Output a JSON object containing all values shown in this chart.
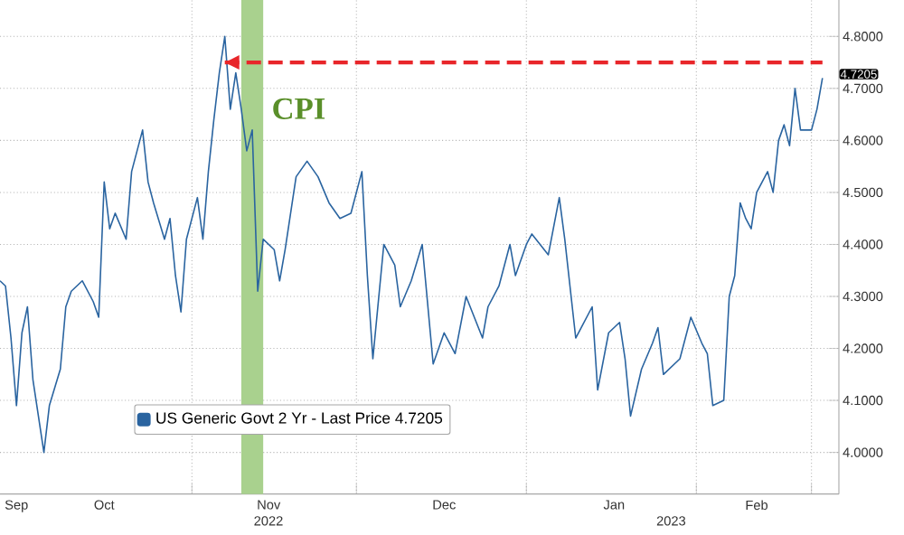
{
  "chart_data": {
    "type": "line",
    "x": [
      "2022-09-27",
      "2022-09-28",
      "2022-09-29",
      "2022-09-30",
      "2022-10-01",
      "2022-10-02",
      "2022-10-03",
      "2022-10-05",
      "2022-10-06",
      "2022-10-08",
      "2022-10-09",
      "2022-10-10",
      "2022-10-12",
      "2022-10-14",
      "2022-10-15",
      "2022-10-16",
      "2022-10-17",
      "2022-10-18",
      "2022-10-20",
      "2022-10-21",
      "2022-10-23",
      "2022-10-24",
      "2022-10-25",
      "2022-10-27",
      "2022-10-28",
      "2022-10-29",
      "2022-10-30",
      "2022-10-31",
      "2022-11-02",
      "2022-11-03",
      "2022-11-04",
      "2022-11-05",
      "2022-11-06",
      "2022-11-07",
      "2022-11-08",
      "2022-11-09",
      "2022-11-10",
      "2022-11-11",
      "2022-11-12",
      "2022-11-13",
      "2022-11-14",
      "2022-11-16",
      "2022-11-17",
      "2022-11-18",
      "2022-11-20",
      "2022-11-22",
      "2022-11-24",
      "2022-11-26",
      "2022-11-28",
      "2022-11-30",
      "2022-12-02",
      "2022-12-03",
      "2022-12-04",
      "2022-12-06",
      "2022-12-08",
      "2022-12-09",
      "2022-12-11",
      "2022-12-13",
      "2022-12-15",
      "2022-12-17",
      "2022-12-19",
      "2022-12-21",
      "2022-12-24",
      "2022-12-25",
      "2022-12-27",
      "2022-12-29",
      "2022-12-30",
      "2023-01-01",
      "2023-01-02",
      "2023-01-05",
      "2023-01-07",
      "2023-01-08",
      "2023-01-10",
      "2023-01-11",
      "2023-01-13",
      "2023-01-14",
      "2023-01-16",
      "2023-01-18",
      "2023-01-19",
      "2023-01-20",
      "2023-01-22",
      "2023-01-24",
      "2023-01-25",
      "2023-01-26",
      "2023-01-29",
      "2023-01-31",
      "2023-02-02",
      "2023-02-03",
      "2023-02-04",
      "2023-02-06",
      "2023-02-07",
      "2023-02-08",
      "2023-02-09",
      "2023-02-10",
      "2023-02-11",
      "2023-02-12",
      "2023-02-14",
      "2023-02-15",
      "2023-02-16",
      "2023-02-17",
      "2023-02-18",
      "2023-02-19",
      "2023-02-20",
      "2023-02-22",
      "2023-02-23",
      "2023-02-24"
    ],
    "series": [
      {
        "name": "US Generic Govt 2 Yr - Last Price 4.7205",
        "color": "#2a64a0",
        "values": [
          4.33,
          4.32,
          4.22,
          4.09,
          4.23,
          4.28,
          4.14,
          4.0,
          4.09,
          4.16,
          4.28,
          4.31,
          4.33,
          4.29,
          4.26,
          4.52,
          4.43,
          4.46,
          4.41,
          4.54,
          4.62,
          4.52,
          4.48,
          4.41,
          4.45,
          4.34,
          4.27,
          4.41,
          4.49,
          4.41,
          4.54,
          4.64,
          4.73,
          4.8,
          4.66,
          4.73,
          4.66,
          4.58,
          4.62,
          4.31,
          4.41,
          4.39,
          4.33,
          4.39,
          4.53,
          4.56,
          4.53,
          4.48,
          4.45,
          4.46,
          4.54,
          4.34,
          4.18,
          4.4,
          4.36,
          4.28,
          4.33,
          4.4,
          4.17,
          4.23,
          4.19,
          4.3,
          4.22,
          4.28,
          4.32,
          4.4,
          4.34,
          4.4,
          4.42,
          4.38,
          4.49,
          4.41,
          4.22,
          4.24,
          4.28,
          4.12,
          4.23,
          4.25,
          4.18,
          4.07,
          4.16,
          4.21,
          4.24,
          4.15,
          4.18,
          4.26,
          4.21,
          4.19,
          4.09,
          4.1,
          4.3,
          4.34,
          4.48,
          4.45,
          4.43,
          4.5,
          4.54,
          4.5,
          4.6,
          4.63,
          4.59,
          4.7,
          4.62,
          4.62,
          4.66,
          4.72
        ]
      },
      {
        "type": "line",
        "color": "#e8262a",
        "line_style": "dashed",
        "x": [
          "2022-11-07",
          "2023-02-24"
        ],
        "values": [
          4.75,
          4.75
        ]
      }
    ],
    "xlim": [
      "2022-09-27",
      "2023-02-27"
    ],
    "xticks": [
      {
        "value": "2022-09-30",
        "label": "Sep"
      },
      {
        "value": "2022-10-16",
        "label": "Oct"
      },
      {
        "value": "2022-11-01",
        "label": null
      },
      {
        "value": "2022-11-15",
        "label": "Nov"
      },
      {
        "value": "2022-12-01",
        "label": null
      },
      {
        "value": "2022-12-17",
        "label": "Dec"
      },
      {
        "value": "2023-01-01",
        "label": null
      },
      {
        "value": "2023-01-17",
        "label": "Jan"
      },
      {
        "value": "2023-02-01",
        "label": null
      },
      {
        "value": "2023-02-12",
        "label": "Feb"
      },
      {
        "value": "2023-02-22",
        "label": null
      }
    ],
    "ylim": [
      3.92,
      4.87
    ],
    "yticks": [
      {
        "value": 4.0,
        "label": "4.0000"
      },
      {
        "value": 4.1,
        "label": "4.1000"
      },
      {
        "value": 4.2,
        "label": "4.2000"
      },
      {
        "value": 4.3,
        "label": "4.3000"
      },
      {
        "value": 4.4,
        "label": "4.4000"
      },
      {
        "value": 4.5,
        "label": "4.5000"
      },
      {
        "value": 4.6,
        "label": "4.6000"
      },
      {
        "value": 4.7,
        "label": "4.7000"
      },
      {
        "value": 4.8,
        "label": "4.8000"
      }
    ],
    "grid": true,
    "legend": "bottom left",
    "bands": [
      {
        "axis": "x",
        "from": "2022-11-10",
        "to": "2022-11-14",
        "label": "CPI",
        "color": "#a9d18e"
      }
    ],
    "annotations": [
      "2022",
      "2023",
      {
        "text": "4.7205",
        "x": "2023-02-24",
        "y": 4.7205
      }
    ]
  }
}
